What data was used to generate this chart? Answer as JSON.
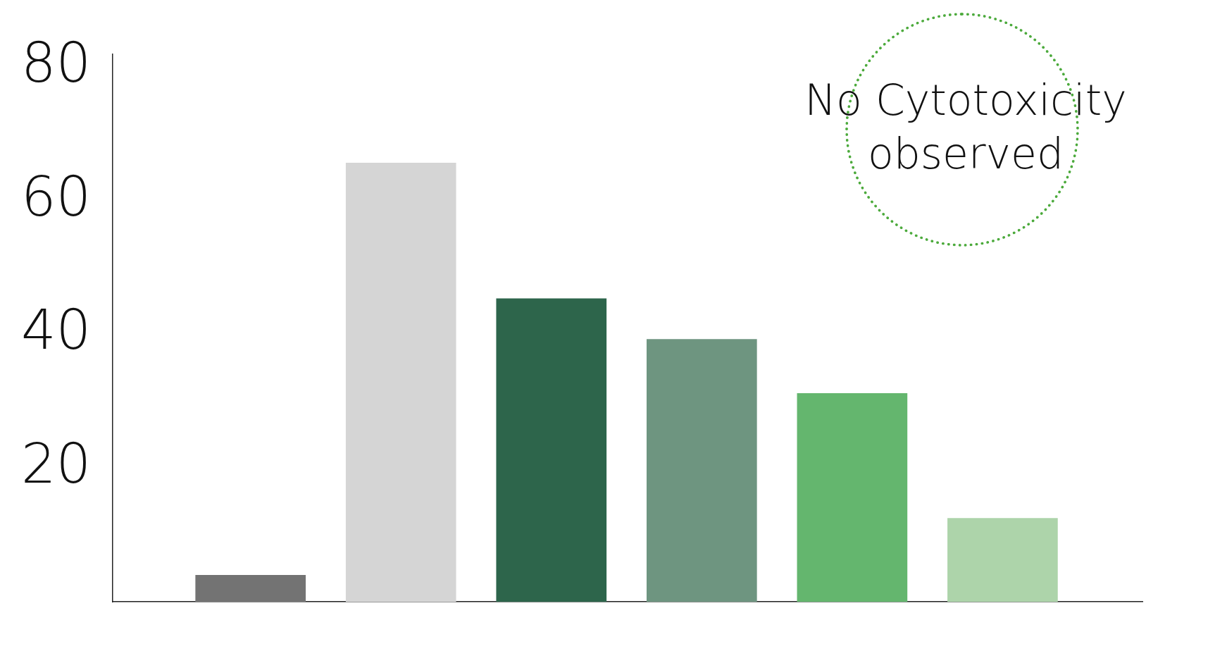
{
  "chart_data": {
    "type": "bar",
    "categories": [
      null,
      null,
      null,
      null,
      null,
      null
    ],
    "values": [
      4.0,
      65.7,
      45.4,
      39.3,
      31.2,
      12.5
    ],
    "colors": [
      "#737373",
      "#d5d5d5",
      "#2d654b",
      "#6e9580",
      "#64b66e",
      "#add4aa"
    ],
    "ylim": [
      0,
      82
    ],
    "yticks": [
      20,
      40,
      60,
      80
    ],
    "grid": false,
    "legend": false,
    "annotations": [
      "No Cytotoxicity observed"
    ]
  }
}
